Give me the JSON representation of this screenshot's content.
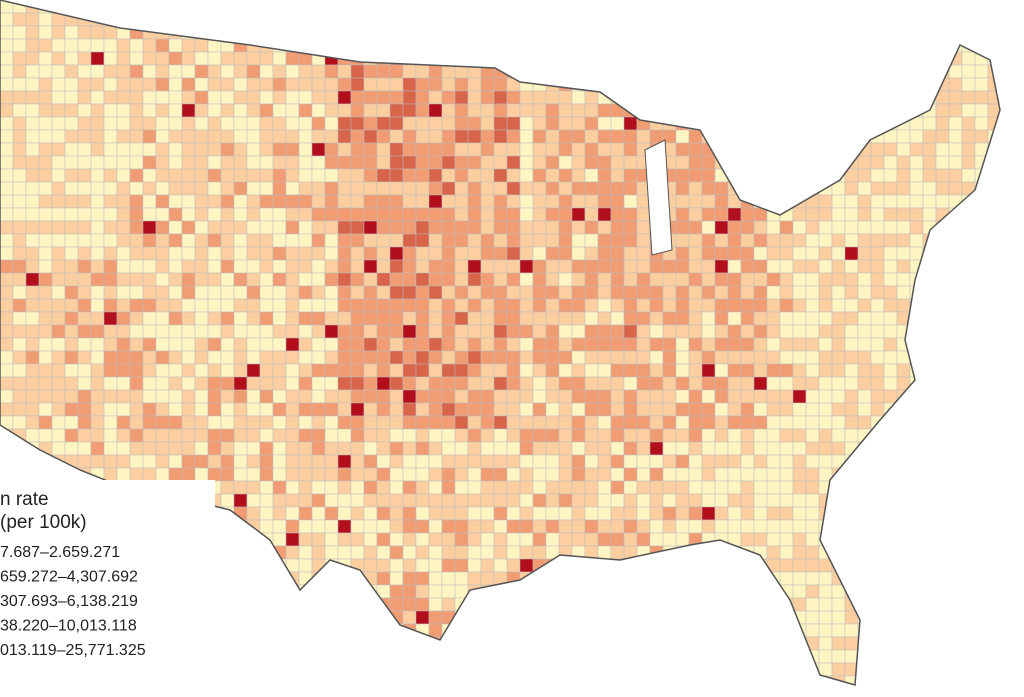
{
  "legend": {
    "title": "n rate",
    "subtitle": "(per 100k)",
    "items": [
      "7.687–2.659.271",
      "659.272–4,307.692",
      "307.693–6,138.219",
      "38.220–10,013.118",
      "013.119–25,771.325"
    ],
    "colors": [
      "#fff5c2",
      "#fdcfa0",
      "#f29c74",
      "#d8644a",
      "#b20e1c"
    ]
  }
}
